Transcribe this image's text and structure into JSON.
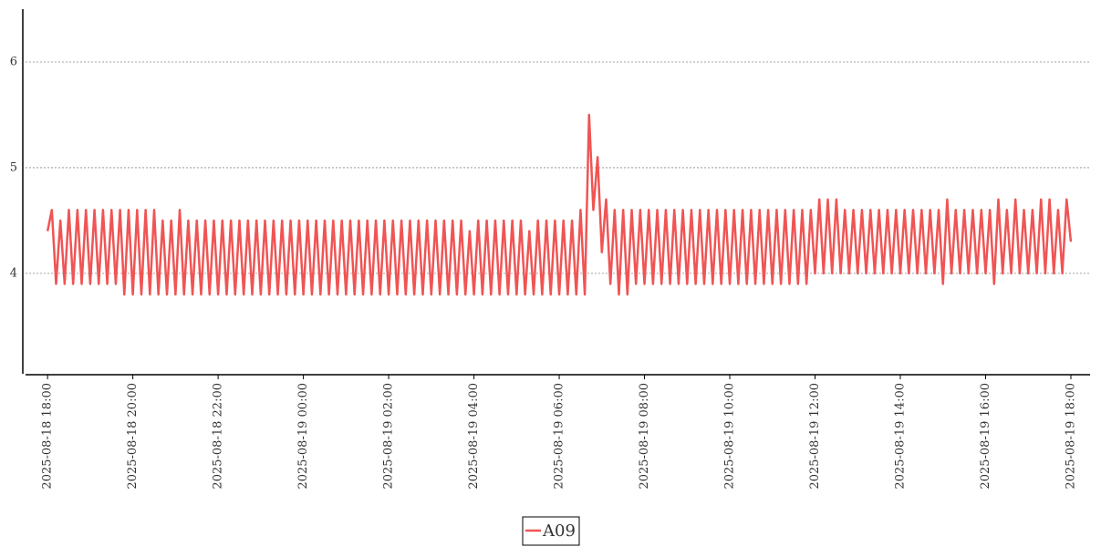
{
  "chart_data": {
    "type": "line",
    "x": [
      "2025-08-18 18:00",
      "2025-08-18 18:06",
      "2025-08-18 18:12",
      "2025-08-18 18:18",
      "2025-08-18 18:24",
      "2025-08-18 18:30",
      "2025-08-18 18:36",
      "2025-08-18 18:42",
      "2025-08-18 18:48",
      "2025-08-18 18:54",
      "2025-08-18 19:00",
      "2025-08-18 19:06",
      "2025-08-18 19:12",
      "2025-08-18 19:18",
      "2025-08-18 19:24",
      "2025-08-18 19:30",
      "2025-08-18 19:36",
      "2025-08-18 19:42",
      "2025-08-18 19:48",
      "2025-08-18 19:54",
      "2025-08-18 20:00",
      "2025-08-18 20:06",
      "2025-08-18 20:12",
      "2025-08-18 20:18",
      "2025-08-18 20:24",
      "2025-08-18 20:30",
      "2025-08-18 20:36",
      "2025-08-18 20:42",
      "2025-08-18 20:48",
      "2025-08-18 20:54",
      "2025-08-18 21:00",
      "2025-08-18 21:06",
      "2025-08-18 21:12",
      "2025-08-18 21:18",
      "2025-08-18 21:24",
      "2025-08-18 21:30",
      "2025-08-18 21:36",
      "2025-08-18 21:42",
      "2025-08-18 21:48",
      "2025-08-18 21:54",
      "2025-08-18 22:00",
      "2025-08-18 22:06",
      "2025-08-18 22:12",
      "2025-08-18 22:18",
      "2025-08-18 22:24",
      "2025-08-18 22:30",
      "2025-08-18 22:36",
      "2025-08-18 22:42",
      "2025-08-18 22:48",
      "2025-08-18 22:54",
      "2025-08-18 23:00",
      "2025-08-18 23:06",
      "2025-08-18 23:12",
      "2025-08-18 23:18",
      "2025-08-18 23:24",
      "2025-08-18 23:30",
      "2025-08-18 23:36",
      "2025-08-18 23:42",
      "2025-08-18 23:48",
      "2025-08-18 23:54",
      "2025-08-19 00:00",
      "2025-08-19 00:06",
      "2025-08-19 00:12",
      "2025-08-19 00:18",
      "2025-08-19 00:24",
      "2025-08-19 00:30",
      "2025-08-19 00:36",
      "2025-08-19 00:42",
      "2025-08-19 00:48",
      "2025-08-19 00:54",
      "2025-08-19 01:00",
      "2025-08-19 01:06",
      "2025-08-19 01:12",
      "2025-08-19 01:18",
      "2025-08-19 01:24",
      "2025-08-19 01:30",
      "2025-08-19 01:36",
      "2025-08-19 01:42",
      "2025-08-19 01:48",
      "2025-08-19 01:54",
      "2025-08-19 02:00",
      "2025-08-19 02:06",
      "2025-08-19 02:12",
      "2025-08-19 02:18",
      "2025-08-19 02:24",
      "2025-08-19 02:30",
      "2025-08-19 02:36",
      "2025-08-19 02:42",
      "2025-08-19 02:48",
      "2025-08-19 02:54",
      "2025-08-19 03:00",
      "2025-08-19 03:06",
      "2025-08-19 03:12",
      "2025-08-19 03:18",
      "2025-08-19 03:24",
      "2025-08-19 03:30",
      "2025-08-19 03:36",
      "2025-08-19 03:42",
      "2025-08-19 03:48",
      "2025-08-19 03:54",
      "2025-08-19 04:00",
      "2025-08-19 04:06",
      "2025-08-19 04:12",
      "2025-08-19 04:18",
      "2025-08-19 04:24",
      "2025-08-19 04:30",
      "2025-08-19 04:36",
      "2025-08-19 04:42",
      "2025-08-19 04:48",
      "2025-08-19 04:54",
      "2025-08-19 05:00",
      "2025-08-19 05:06",
      "2025-08-19 05:12",
      "2025-08-19 05:18",
      "2025-08-19 05:24",
      "2025-08-19 05:30",
      "2025-08-19 05:36",
      "2025-08-19 05:42",
      "2025-08-19 05:48",
      "2025-08-19 05:54",
      "2025-08-19 06:00",
      "2025-08-19 06:06",
      "2025-08-19 06:12",
      "2025-08-19 06:18",
      "2025-08-19 06:24",
      "2025-08-19 06:30",
      "2025-08-19 06:36",
      "2025-08-19 06:42",
      "2025-08-19 06:48",
      "2025-08-19 06:54",
      "2025-08-19 07:00",
      "2025-08-19 07:06",
      "2025-08-19 07:12",
      "2025-08-19 07:18",
      "2025-08-19 07:24",
      "2025-08-19 07:30",
      "2025-08-19 07:36",
      "2025-08-19 07:42",
      "2025-08-19 07:48",
      "2025-08-19 07:54",
      "2025-08-19 08:00",
      "2025-08-19 08:06",
      "2025-08-19 08:12",
      "2025-08-19 08:18",
      "2025-08-19 08:24",
      "2025-08-19 08:30",
      "2025-08-19 08:36",
      "2025-08-19 08:42",
      "2025-08-19 08:48",
      "2025-08-19 08:54",
      "2025-08-19 09:00",
      "2025-08-19 09:06",
      "2025-08-19 09:12",
      "2025-08-19 09:18",
      "2025-08-19 09:24",
      "2025-08-19 09:30",
      "2025-08-19 09:36",
      "2025-08-19 09:42",
      "2025-08-19 09:48",
      "2025-08-19 09:54",
      "2025-08-19 10:00",
      "2025-08-19 10:06",
      "2025-08-19 10:12",
      "2025-08-19 10:18",
      "2025-08-19 10:24",
      "2025-08-19 10:30",
      "2025-08-19 10:36",
      "2025-08-19 10:42",
      "2025-08-19 10:48",
      "2025-08-19 10:54",
      "2025-08-19 11:00",
      "2025-08-19 11:06",
      "2025-08-19 11:12",
      "2025-08-19 11:18",
      "2025-08-19 11:24",
      "2025-08-19 11:30",
      "2025-08-19 11:36",
      "2025-08-19 11:42",
      "2025-08-19 11:48",
      "2025-08-19 11:54",
      "2025-08-19 12:00",
      "2025-08-19 12:06",
      "2025-08-19 12:12",
      "2025-08-19 12:18",
      "2025-08-19 12:24",
      "2025-08-19 12:30",
      "2025-08-19 12:36",
      "2025-08-19 12:42",
      "2025-08-19 12:48",
      "2025-08-19 12:54",
      "2025-08-19 13:00",
      "2025-08-19 13:06",
      "2025-08-19 13:12",
      "2025-08-19 13:18",
      "2025-08-19 13:24",
      "2025-08-19 13:30",
      "2025-08-19 13:36",
      "2025-08-19 13:42",
      "2025-08-19 13:48",
      "2025-08-19 13:54",
      "2025-08-19 14:00",
      "2025-08-19 14:06",
      "2025-08-19 14:12",
      "2025-08-19 14:18",
      "2025-08-19 14:24",
      "2025-08-19 14:30",
      "2025-08-19 14:36",
      "2025-08-19 14:42",
      "2025-08-19 14:48",
      "2025-08-19 14:54",
      "2025-08-19 15:00",
      "2025-08-19 15:06",
      "2025-08-19 15:12",
      "2025-08-19 15:18",
      "2025-08-19 15:24",
      "2025-08-19 15:30",
      "2025-08-19 15:36",
      "2025-08-19 15:42",
      "2025-08-19 15:48",
      "2025-08-19 15:54",
      "2025-08-19 16:00",
      "2025-08-19 16:06",
      "2025-08-19 16:12",
      "2025-08-19 16:18",
      "2025-08-19 16:24",
      "2025-08-19 16:30",
      "2025-08-19 16:36",
      "2025-08-19 16:42",
      "2025-08-19 16:48",
      "2025-08-19 16:54",
      "2025-08-19 17:00",
      "2025-08-19 17:06",
      "2025-08-19 17:12",
      "2025-08-19 17:18",
      "2025-08-19 17:24",
      "2025-08-19 17:30",
      "2025-08-19 17:36",
      "2025-08-19 17:42",
      "2025-08-19 17:48",
      "2025-08-19 17:54",
      "2025-08-19 18:00"
    ],
    "series": [
      {
        "name": "A09",
        "color": "#f05454",
        "values": [
          4.4,
          4.6,
          3.9,
          4.5,
          3.9,
          4.6,
          3.9,
          4.6,
          3.9,
          4.6,
          3.9,
          4.6,
          3.9,
          4.6,
          3.9,
          4.6,
          3.9,
          4.6,
          3.8,
          4.6,
          3.8,
          4.6,
          3.8,
          4.6,
          3.8,
          4.6,
          3.8,
          4.5,
          3.8,
          4.5,
          3.8,
          4.6,
          3.8,
          4.5,
          3.8,
          4.5,
          3.8,
          4.5,
          3.8,
          4.5,
          3.8,
          4.5,
          3.8,
          4.5,
          3.8,
          4.5,
          3.8,
          4.5,
          3.8,
          4.5,
          3.8,
          4.5,
          3.8,
          4.5,
          3.8,
          4.5,
          3.8,
          4.5,
          3.8,
          4.5,
          3.8,
          4.5,
          3.8,
          4.5,
          3.8,
          4.5,
          3.8,
          4.5,
          3.8,
          4.5,
          3.8,
          4.5,
          3.8,
          4.5,
          3.8,
          4.5,
          3.8,
          4.5,
          3.8,
          4.5,
          3.8,
          4.5,
          3.8,
          4.5,
          3.8,
          4.5,
          3.8,
          4.5,
          3.8,
          4.5,
          3.8,
          4.5,
          3.8,
          4.5,
          3.8,
          4.5,
          3.8,
          4.5,
          3.8,
          4.4,
          3.8,
          4.5,
          3.8,
          4.5,
          3.8,
          4.5,
          3.8,
          4.5,
          3.8,
          4.5,
          3.8,
          4.5,
          3.8,
          4.4,
          3.8,
          4.5,
          3.8,
          4.5,
          3.8,
          4.5,
          3.8,
          4.5,
          3.8,
          4.5,
          3.8,
          4.6,
          3.8,
          5.5,
          4.6,
          5.1,
          4.2,
          4.7,
          3.9,
          4.6,
          3.8,
          4.6,
          3.8,
          4.6,
          3.9,
          4.6,
          3.9,
          4.6,
          3.9,
          4.6,
          3.9,
          4.6,
          3.9,
          4.6,
          3.9,
          4.6,
          3.9,
          4.6,
          3.9,
          4.6,
          3.9,
          4.6,
          3.9,
          4.6,
          3.9,
          4.6,
          3.9,
          4.6,
          3.9,
          4.6,
          3.9,
          4.6,
          3.9,
          4.6,
          3.9,
          4.6,
          3.9,
          4.6,
          3.9,
          4.6,
          3.9,
          4.6,
          3.9,
          4.6,
          3.9,
          4.6,
          4.0,
          4.7,
          4.0,
          4.7,
          4.0,
          4.7,
          4.0,
          4.6,
          4.0,
          4.6,
          4.0,
          4.6,
          4.0,
          4.6,
          4.0,
          4.6,
          4.0,
          4.6,
          4.0,
          4.6,
          4.0,
          4.6,
          4.0,
          4.6,
          4.0,
          4.6,
          4.0,
          4.6,
          4.0,
          4.6,
          3.9,
          4.7,
          4.0,
          4.6,
          4.0,
          4.6,
          4.0,
          4.6,
          4.0,
          4.6,
          4.0,
          4.6,
          3.9,
          4.7,
          4.0,
          4.6,
          4.0,
          4.7,
          4.0,
          4.6,
          4.0,
          4.6,
          4.0,
          4.7,
          4.0,
          4.7,
          4.0,
          4.6,
          4.0,
          4.7,
          4.3
        ]
      }
    ],
    "xlim": [
      "2025-08-18 17:29",
      "2025-08-19 18:27"
    ],
    "xticks": [
      "2025-08-18 18:00",
      "2025-08-18 20:00",
      "2025-08-18 22:00",
      "2025-08-19 00:00",
      "2025-08-19 02:00",
      "2025-08-19 04:00",
      "2025-08-19 06:00",
      "2025-08-19 08:00",
      "2025-08-19 10:00",
      "2025-08-19 12:00",
      "2025-08-19 14:00",
      "2025-08-19 16:00",
      "2025-08-19 18:00"
    ],
    "ylim": [
      3.05,
      6.5
    ],
    "yticks": [
      4,
      5,
      6
    ],
    "grid": true,
    "legend": "bottom"
  }
}
